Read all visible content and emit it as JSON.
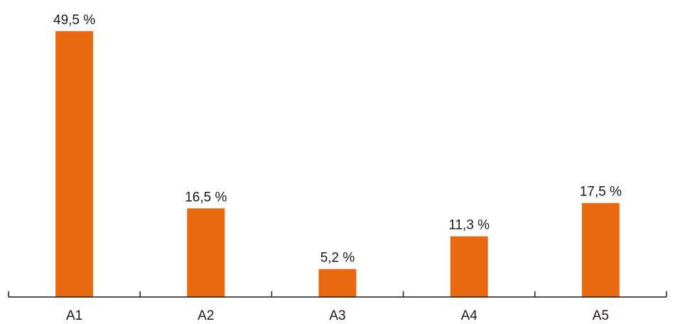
{
  "chart_data": {
    "type": "bar",
    "categories": [
      "A1",
      "A2",
      "A3",
      "A4",
      "A5"
    ],
    "values": [
      49.5,
      16.5,
      5.2,
      11.3,
      17.5
    ],
    "data_labels": [
      "49,5 %",
      "16,5 %",
      "5,2 %",
      "11,3 %",
      "17,5 %"
    ],
    "unit": "%",
    "ylim": [
      0,
      50
    ],
    "grid": false,
    "legend": "none",
    "title": "",
    "xlabel": "",
    "ylabel": "",
    "bar_color": "#E8690F",
    "axis_color": "#1a1a1a"
  }
}
